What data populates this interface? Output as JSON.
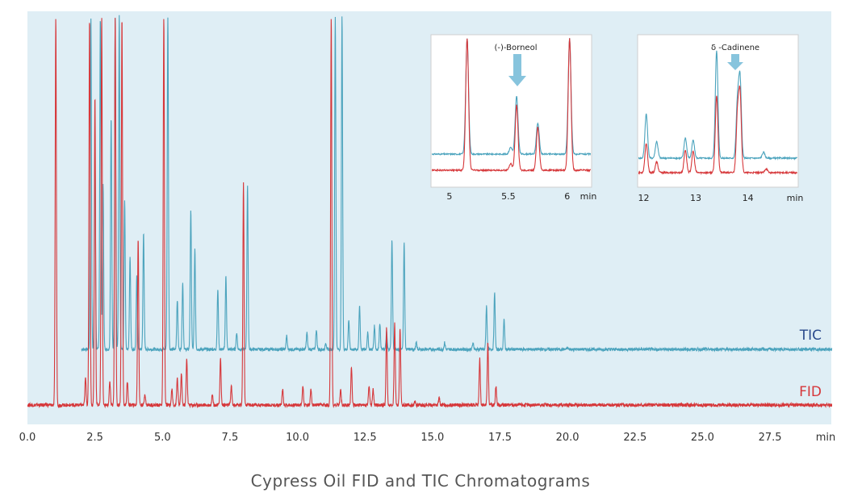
{
  "caption": "Cypress Oil FID and TIC Chromatograms",
  "chart_data": [
    {
      "type": "line",
      "panel": "main",
      "x_unit": "min",
      "xlim": [
        0,
        29.8
      ],
      "x_ticks": [
        0.0,
        2.5,
        5.0,
        7.5,
        10.0,
        12.5,
        15.0,
        17.5,
        20.0,
        22.5,
        25.0,
        27.5
      ],
      "x_tick_labels": [
        "0.0",
        "2.5",
        "5.0",
        "7.5",
        "10.0",
        "12.5",
        "15.0",
        "17.5",
        "20.0",
        "22.5",
        "25.0",
        "27.5"
      ],
      "ylim": [
        0,
        100
      ],
      "grid": false,
      "background": "#dfeef5",
      "series": [
        {
          "name": "TIC",
          "color": "#4ba3bd",
          "label_color": "#2a4a8c",
          "baseline": 0,
          "x_start": 2.0,
          "x_end": 30.0,
          "peaks": [
            [
              2.35,
              100
            ],
            [
              2.5,
              60
            ],
            [
              2.7,
              100
            ],
            [
              2.8,
              50
            ],
            [
              3.1,
              70
            ],
            [
              3.25,
              100
            ],
            [
              3.4,
              100
            ],
            [
              3.6,
              45
            ],
            [
              3.8,
              28
            ],
            [
              4.05,
              22
            ],
            [
              4.3,
              35
            ],
            [
              5.2,
              100
            ],
            [
              5.55,
              15
            ],
            [
              5.75,
              20
            ],
            [
              6.05,
              42
            ],
            [
              6.2,
              30
            ],
            [
              7.05,
              18
            ],
            [
              7.35,
              22
            ],
            [
              7.75,
              5
            ],
            [
              8.15,
              49
            ],
            [
              9.6,
              4
            ],
            [
              10.35,
              5
            ],
            [
              10.7,
              6
            ],
            [
              11.05,
              2
            ],
            [
              11.4,
              100
            ],
            [
              11.65,
              100
            ],
            [
              11.9,
              9
            ],
            [
              12.3,
              13
            ],
            [
              12.6,
              5
            ],
            [
              12.85,
              7
            ],
            [
              13.05,
              8
            ],
            [
              13.3,
              5
            ],
            [
              13.5,
              33
            ],
            [
              13.95,
              32
            ],
            [
              14.4,
              2
            ],
            [
              15.45,
              2
            ],
            [
              16.5,
              2
            ],
            [
              17.0,
              13
            ],
            [
              17.3,
              17
            ],
            [
              17.65,
              9
            ],
            [
              20.0,
              0.5
            ]
          ]
        },
        {
          "name": "FID",
          "color": "#d6373a",
          "label_color": "#d6373a",
          "baseline": 0,
          "x_start": 0,
          "x_end": 29.8,
          "peaks": [
            [
              1.05,
              100
            ],
            [
              2.15,
              7
            ],
            [
              2.3,
              100
            ],
            [
              2.5,
              80
            ],
            [
              2.75,
              100
            ],
            [
              3.05,
              6
            ],
            [
              3.25,
              100
            ],
            [
              3.5,
              100
            ],
            [
              3.7,
              6
            ],
            [
              4.1,
              43
            ],
            [
              4.35,
              3
            ],
            [
              5.05,
              100
            ],
            [
              5.35,
              4
            ],
            [
              5.55,
              7
            ],
            [
              5.7,
              8
            ],
            [
              5.9,
              12
            ],
            [
              6.85,
              3
            ],
            [
              7.15,
              12
            ],
            [
              7.55,
              5
            ],
            [
              8.0,
              57
            ],
            [
              9.45,
              4
            ],
            [
              10.2,
              5
            ],
            [
              10.5,
              4
            ],
            [
              11.25,
              100
            ],
            [
              11.6,
              4
            ],
            [
              12.0,
              10
            ],
            [
              12.65,
              5
            ],
            [
              12.8,
              4
            ],
            [
              13.3,
              20
            ],
            [
              13.6,
              21
            ],
            [
              13.8,
              20
            ],
            [
              14.35,
              1
            ],
            [
              15.25,
              2
            ],
            [
              16.75,
              12
            ],
            [
              17.05,
              16
            ],
            [
              17.35,
              5
            ],
            [
              19.75,
              0.5
            ]
          ]
        }
      ]
    },
    {
      "type": "line",
      "panel": "inset",
      "x_unit": "min",
      "xlim": [
        4.85,
        6.2
      ],
      "x_ticks": [
        5,
        5.5,
        6
      ],
      "x_tick_labels": [
        "5",
        "5.5",
        "6"
      ],
      "annotation": "(-)-Borneol",
      "annotation_x": 5.55,
      "series": [
        {
          "name": "TIC",
          "color": "#4ba3bd",
          "peaks": [
            [
              5.15,
              100
            ],
            [
              5.52,
              6
            ],
            [
              5.57,
              50
            ],
            [
              5.75,
              27
            ],
            [
              6.02,
              100
            ]
          ]
        },
        {
          "name": "FID",
          "color": "#d6373a",
          "peaks": [
            [
              5.15,
              100
            ],
            [
              5.52,
              5
            ],
            [
              5.57,
              50
            ],
            [
              5.75,
              33
            ],
            [
              6.02,
              100
            ]
          ]
        }
      ]
    },
    {
      "type": "line",
      "panel": "inset",
      "x_unit": "min",
      "xlim": [
        11.9,
        14.95
      ],
      "x_ticks": [
        12,
        13,
        14
      ],
      "x_tick_labels": [
        "12",
        "13",
        "14"
      ],
      "annotation": "δ -Cadinene",
      "annotation_x": 13.85,
      "series": [
        {
          "name": "TIC",
          "color": "#4ba3bd",
          "peaks": [
            [
              12.05,
              37
            ],
            [
              12.25,
              14
            ],
            [
              12.8,
              17
            ],
            [
              12.95,
              15
            ],
            [
              13.4,
              90
            ],
            [
              13.8,
              46
            ],
            [
              13.85,
              65
            ],
            [
              14.3,
              5
            ]
          ]
        },
        {
          "name": "FID",
          "color": "#d6373a",
          "peaks": [
            [
              12.05,
              22
            ],
            [
              12.25,
              8
            ],
            [
              12.8,
              17
            ],
            [
              12.95,
              16
            ],
            [
              13.4,
              58
            ],
            [
              13.8,
              42
            ],
            [
              13.85,
              58
            ],
            [
              14.35,
              3
            ]
          ]
        }
      ]
    }
  ]
}
